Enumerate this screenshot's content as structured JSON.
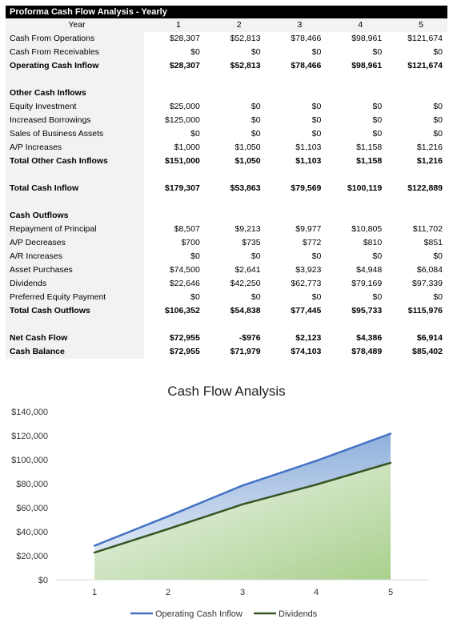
{
  "table": {
    "title": "Proforma Cash Flow Analysis - Yearly",
    "header_label": "Year",
    "years": [
      "1",
      "2",
      "3",
      "4",
      "5"
    ],
    "rows": [
      {
        "label": "Cash From Operations",
        "bold": false,
        "values": [
          "$28,307",
          "$52,813",
          "$78,466",
          "$98,961",
          "$121,674"
        ]
      },
      {
        "label": "Cash From Receivables",
        "bold": false,
        "values": [
          "$0",
          "$0",
          "$0",
          "$0",
          "$0"
        ]
      },
      {
        "label": "Operating Cash Inflow",
        "bold": true,
        "values": [
          "$28,307",
          "$52,813",
          "$78,466",
          "$98,961",
          "$121,674"
        ]
      },
      {
        "label": "",
        "bold": false,
        "values": [
          "",
          "",
          "",
          "",
          ""
        ]
      },
      {
        "label": "Other Cash Inflows",
        "bold": true,
        "values": [
          "",
          "",
          "",
          "",
          ""
        ]
      },
      {
        "label": "Equity Investment",
        "bold": false,
        "values": [
          "$25,000",
          "$0",
          "$0",
          "$0",
          "$0"
        ]
      },
      {
        "label": "Increased Borrowings",
        "bold": false,
        "values": [
          "$125,000",
          "$0",
          "$0",
          "$0",
          "$0"
        ]
      },
      {
        "label": "Sales of Business Assets",
        "bold": false,
        "values": [
          "$0",
          "$0",
          "$0",
          "$0",
          "$0"
        ]
      },
      {
        "label": "A/P Increases",
        "bold": false,
        "values": [
          "$1,000",
          "$1,050",
          "$1,103",
          "$1,158",
          "$1,216"
        ]
      },
      {
        "label": "Total Other Cash Inflows",
        "bold": true,
        "values": [
          "$151,000",
          "$1,050",
          "$1,103",
          "$1,158",
          "$1,216"
        ]
      },
      {
        "label": "",
        "bold": false,
        "values": [
          "",
          "",
          "",
          "",
          ""
        ]
      },
      {
        "label": "Total Cash Inflow",
        "bold": true,
        "values": [
          "$179,307",
          "$53,863",
          "$79,569",
          "$100,119",
          "$122,889"
        ]
      },
      {
        "label": "",
        "bold": false,
        "values": [
          "",
          "",
          "",
          "",
          ""
        ]
      },
      {
        "label": "Cash Outflows",
        "bold": true,
        "values": [
          "",
          "",
          "",
          "",
          ""
        ]
      },
      {
        "label": "Repayment of Principal",
        "bold": false,
        "values": [
          "$8,507",
          "$9,213",
          "$9,977",
          "$10,805",
          "$11,702"
        ]
      },
      {
        "label": "A/P Decreases",
        "bold": false,
        "values": [
          "$700",
          "$735",
          "$772",
          "$810",
          "$851"
        ]
      },
      {
        "label": "A/R Increases",
        "bold": false,
        "values": [
          "$0",
          "$0",
          "$0",
          "$0",
          "$0"
        ]
      },
      {
        "label": "Asset Purchases",
        "bold": false,
        "values": [
          "$74,500",
          "$2,641",
          "$3,923",
          "$4,948",
          "$6,084"
        ]
      },
      {
        "label": "Dividends",
        "bold": false,
        "values": [
          "$22,646",
          "$42,250",
          "$62,773",
          "$79,169",
          "$97,339"
        ]
      },
      {
        "label": "Preferred Equity Payment",
        "bold": false,
        "values": [
          "$0",
          "$0",
          "$0",
          "$0",
          "$0"
        ]
      },
      {
        "label": "Total Cash Outflows",
        "bold": true,
        "values": [
          "$106,352",
          "$54,838",
          "$77,445",
          "$95,733",
          "$115,976"
        ]
      },
      {
        "label": "",
        "bold": false,
        "values": [
          "",
          "",
          "",
          "",
          ""
        ]
      },
      {
        "label": "Net Cash Flow",
        "bold": true,
        "values": [
          "$72,955",
          "-$976",
          "$2,123",
          "$4,386",
          "$6,914"
        ]
      },
      {
        "label": "Cash Balance",
        "bold": true,
        "values": [
          "$72,955",
          "$71,979",
          "$74,103",
          "$78,489",
          "$85,402"
        ]
      }
    ]
  },
  "chart_data": {
    "type": "area",
    "title": "Cash Flow Analysis",
    "x": [
      "1",
      "2",
      "3",
      "4",
      "5"
    ],
    "ylim": [
      0,
      140000
    ],
    "ytick_values": [
      0,
      20000,
      40000,
      60000,
      80000,
      100000,
      120000,
      140000
    ],
    "ytick_labels": [
      "$0",
      "$20,000",
      "$40,000",
      "$60,000",
      "$80,000",
      "$100,000",
      "$120,000",
      "$140,000"
    ],
    "grid": false,
    "legend_position": "bottom",
    "series": [
      {
        "name": "Operating Cash Inflow",
        "values": [
          28307,
          52813,
          78466,
          98961,
          121674
        ],
        "color": "#4472c4"
      },
      {
        "name": "Dividends",
        "values": [
          22646,
          42250,
          62773,
          79169,
          97339
        ],
        "color": "#375623"
      }
    ]
  }
}
